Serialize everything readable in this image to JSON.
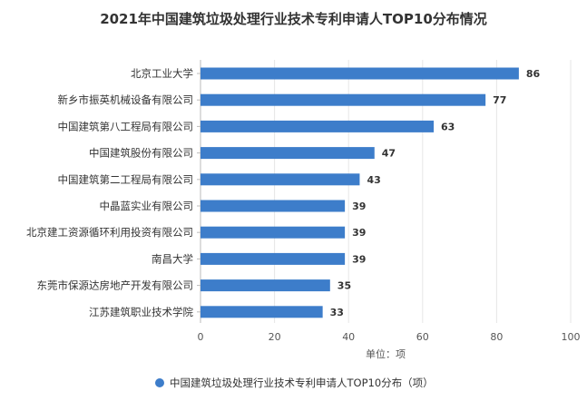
{
  "chart_data": {
    "type": "bar",
    "orientation": "horizontal",
    "title": "2021年中国建筑垃圾处理行业技术专利申请人TOP10分布情况",
    "categories": [
      "北京工业大学",
      "新乡市振英机械设备有限公司",
      "中国建筑第八工程局有限公司",
      "中国建筑股份有限公司",
      "中国建筑第二工程局有限公司",
      "中晶蓝实业有限公司",
      "北京建工资源循环利用投资有限公司",
      "南昌大学",
      "东莞市保源达房地产开发有限公司",
      "江苏建筑职业技术学院"
    ],
    "series": [
      {
        "name": "中国建筑垃圾处理行业技术专利申请人TOP10分布（项）",
        "values": [
          86,
          77,
          63,
          47,
          43,
          39,
          39,
          39,
          35,
          33
        ]
      }
    ],
    "xlim": [
      0,
      100
    ],
    "xticks": [
      0,
      20,
      40,
      60,
      80,
      100
    ],
    "unit_label": "单位：项",
    "grid": "vertical",
    "legend_position": "bottom",
    "bar_color": "#3d7dca"
  }
}
